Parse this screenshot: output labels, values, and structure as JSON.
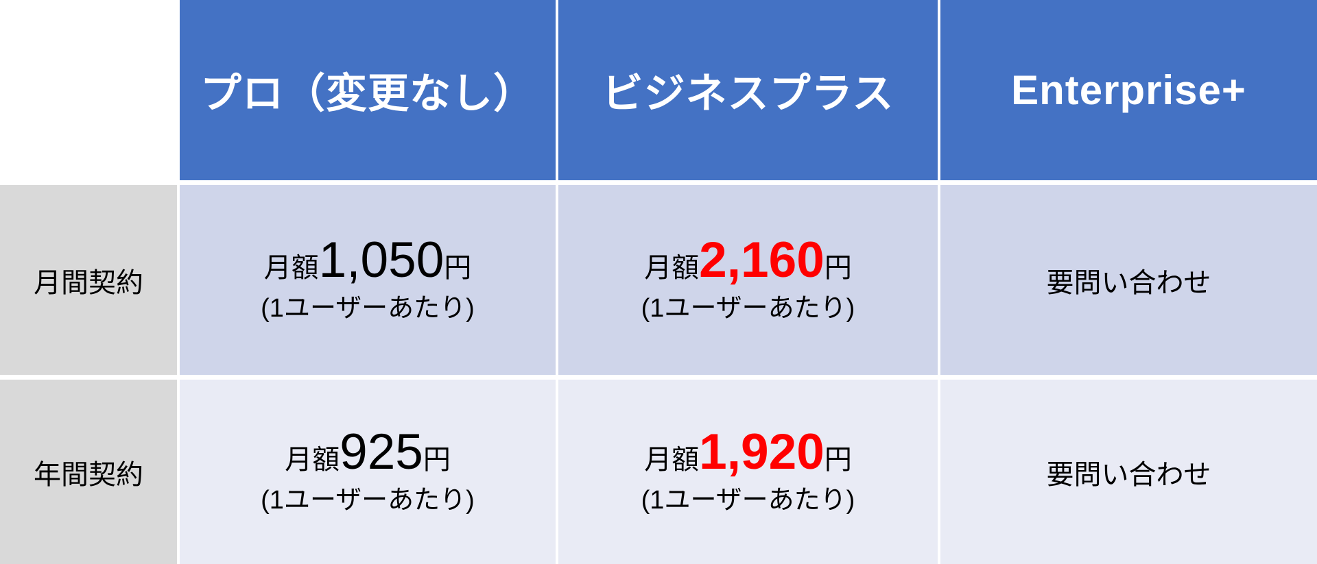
{
  "colors": {
    "header_bg": "#4472C4",
    "header_text": "#FFFFFF",
    "label_bg": "#D9D9D9",
    "band1_bg": "#CFD5EA",
    "band2_bg": "#E9EBF5",
    "accent_red": "#FF0000",
    "text_color": "#000000",
    "border_white": "#FFFFFF"
  },
  "table": {
    "columns": [
      "",
      "プロ（変更なし）",
      "ビジネスプラス",
      "Enterprise+"
    ],
    "rows": [
      {
        "label": "月間契約",
        "pro": {
          "prefix": "月額",
          "amount": "1,050",
          "suffix": "円",
          "caption": "(1ユーザーあたり)",
          "highlight": false
        },
        "business_plus": {
          "prefix": "月額",
          "amount": "2,160",
          "suffix": "円",
          "caption": "(1ユーザーあたり)",
          "highlight": true
        },
        "enterprise": "要問い合わせ"
      },
      {
        "label": "年間契約",
        "pro": {
          "prefix": "月額",
          "amount": "925",
          "suffix": "円",
          "caption": "(1ユーザーあたり)",
          "highlight": false
        },
        "business_plus": {
          "prefix": "月額",
          "amount": "1,920",
          "suffix": "円",
          "caption": "(1ユーザーあたり)",
          "highlight": true
        },
        "enterprise": "要問い合わせ"
      }
    ]
  },
  "chart_data": {
    "type": "table",
    "columns": [
      "",
      "プロ（変更なし）",
      "ビジネスプラス",
      "Enterprise+"
    ],
    "rows": [
      [
        "月間契約",
        "月額1,050円 (1ユーザーあたり)",
        "月額2,160円 (1ユーザーあたり)",
        "要問い合わせ"
      ],
      [
        "年間契約",
        "月額925円 (1ユーザーあたり)",
        "月額1,920円 (1ユーザーあたり)",
        "要問い合わせ"
      ]
    ],
    "annotations": [
      "ビジネスプラス prices 2,160 and 1,920 rendered in bold red",
      "header row blue #4472C4 white bold text",
      "row label column gray #D9D9D9",
      "banded data rows #CFD5EA and #E9EBF5"
    ],
    "legend_position": "none",
    "grid": "white cell gaps as separators"
  }
}
